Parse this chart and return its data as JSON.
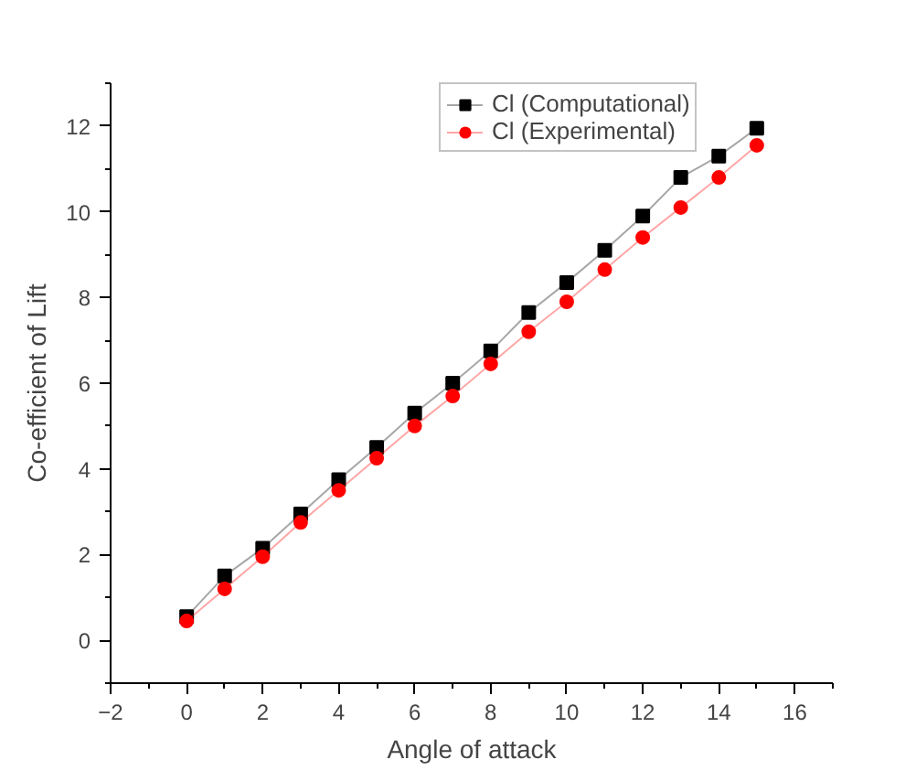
{
  "chart_data": {
    "type": "line",
    "xlabel": "Angle of attack",
    "ylabel": "Co-efficient of Lift",
    "x": [
      0,
      1,
      2,
      3,
      4,
      5,
      6,
      7,
      8,
      9,
      10,
      11,
      12,
      13,
      14,
      15
    ],
    "series": [
      {
        "name": "Cl (Computational)",
        "color": "#000000",
        "marker": "square",
        "values": [
          0.55,
          1.5,
          2.15,
          2.95,
          3.75,
          4.5,
          5.3,
          6.0,
          6.75,
          7.65,
          8.35,
          9.1,
          9.9,
          10.8,
          11.3,
          11.95
        ]
      },
      {
        "name": "Cl (Experimental)",
        "color": "#ff0000",
        "marker": "circle",
        "values": [
          0.45,
          1.2,
          1.95,
          2.75,
          3.5,
          4.25,
          5.0,
          5.7,
          6.45,
          7.2,
          7.9,
          8.65,
          9.4,
          10.1,
          10.8,
          11.55
        ]
      }
    ],
    "xlim": [
      -2,
      17
    ],
    "ylim": [
      -1,
      13
    ],
    "xticks": [
      -2,
      0,
      2,
      4,
      6,
      8,
      10,
      12,
      14,
      16
    ],
    "yticks": [
      0,
      2,
      4,
      6,
      8,
      10,
      12
    ],
    "grid": false,
    "legend": "top right",
    "line_style": "solid"
  }
}
